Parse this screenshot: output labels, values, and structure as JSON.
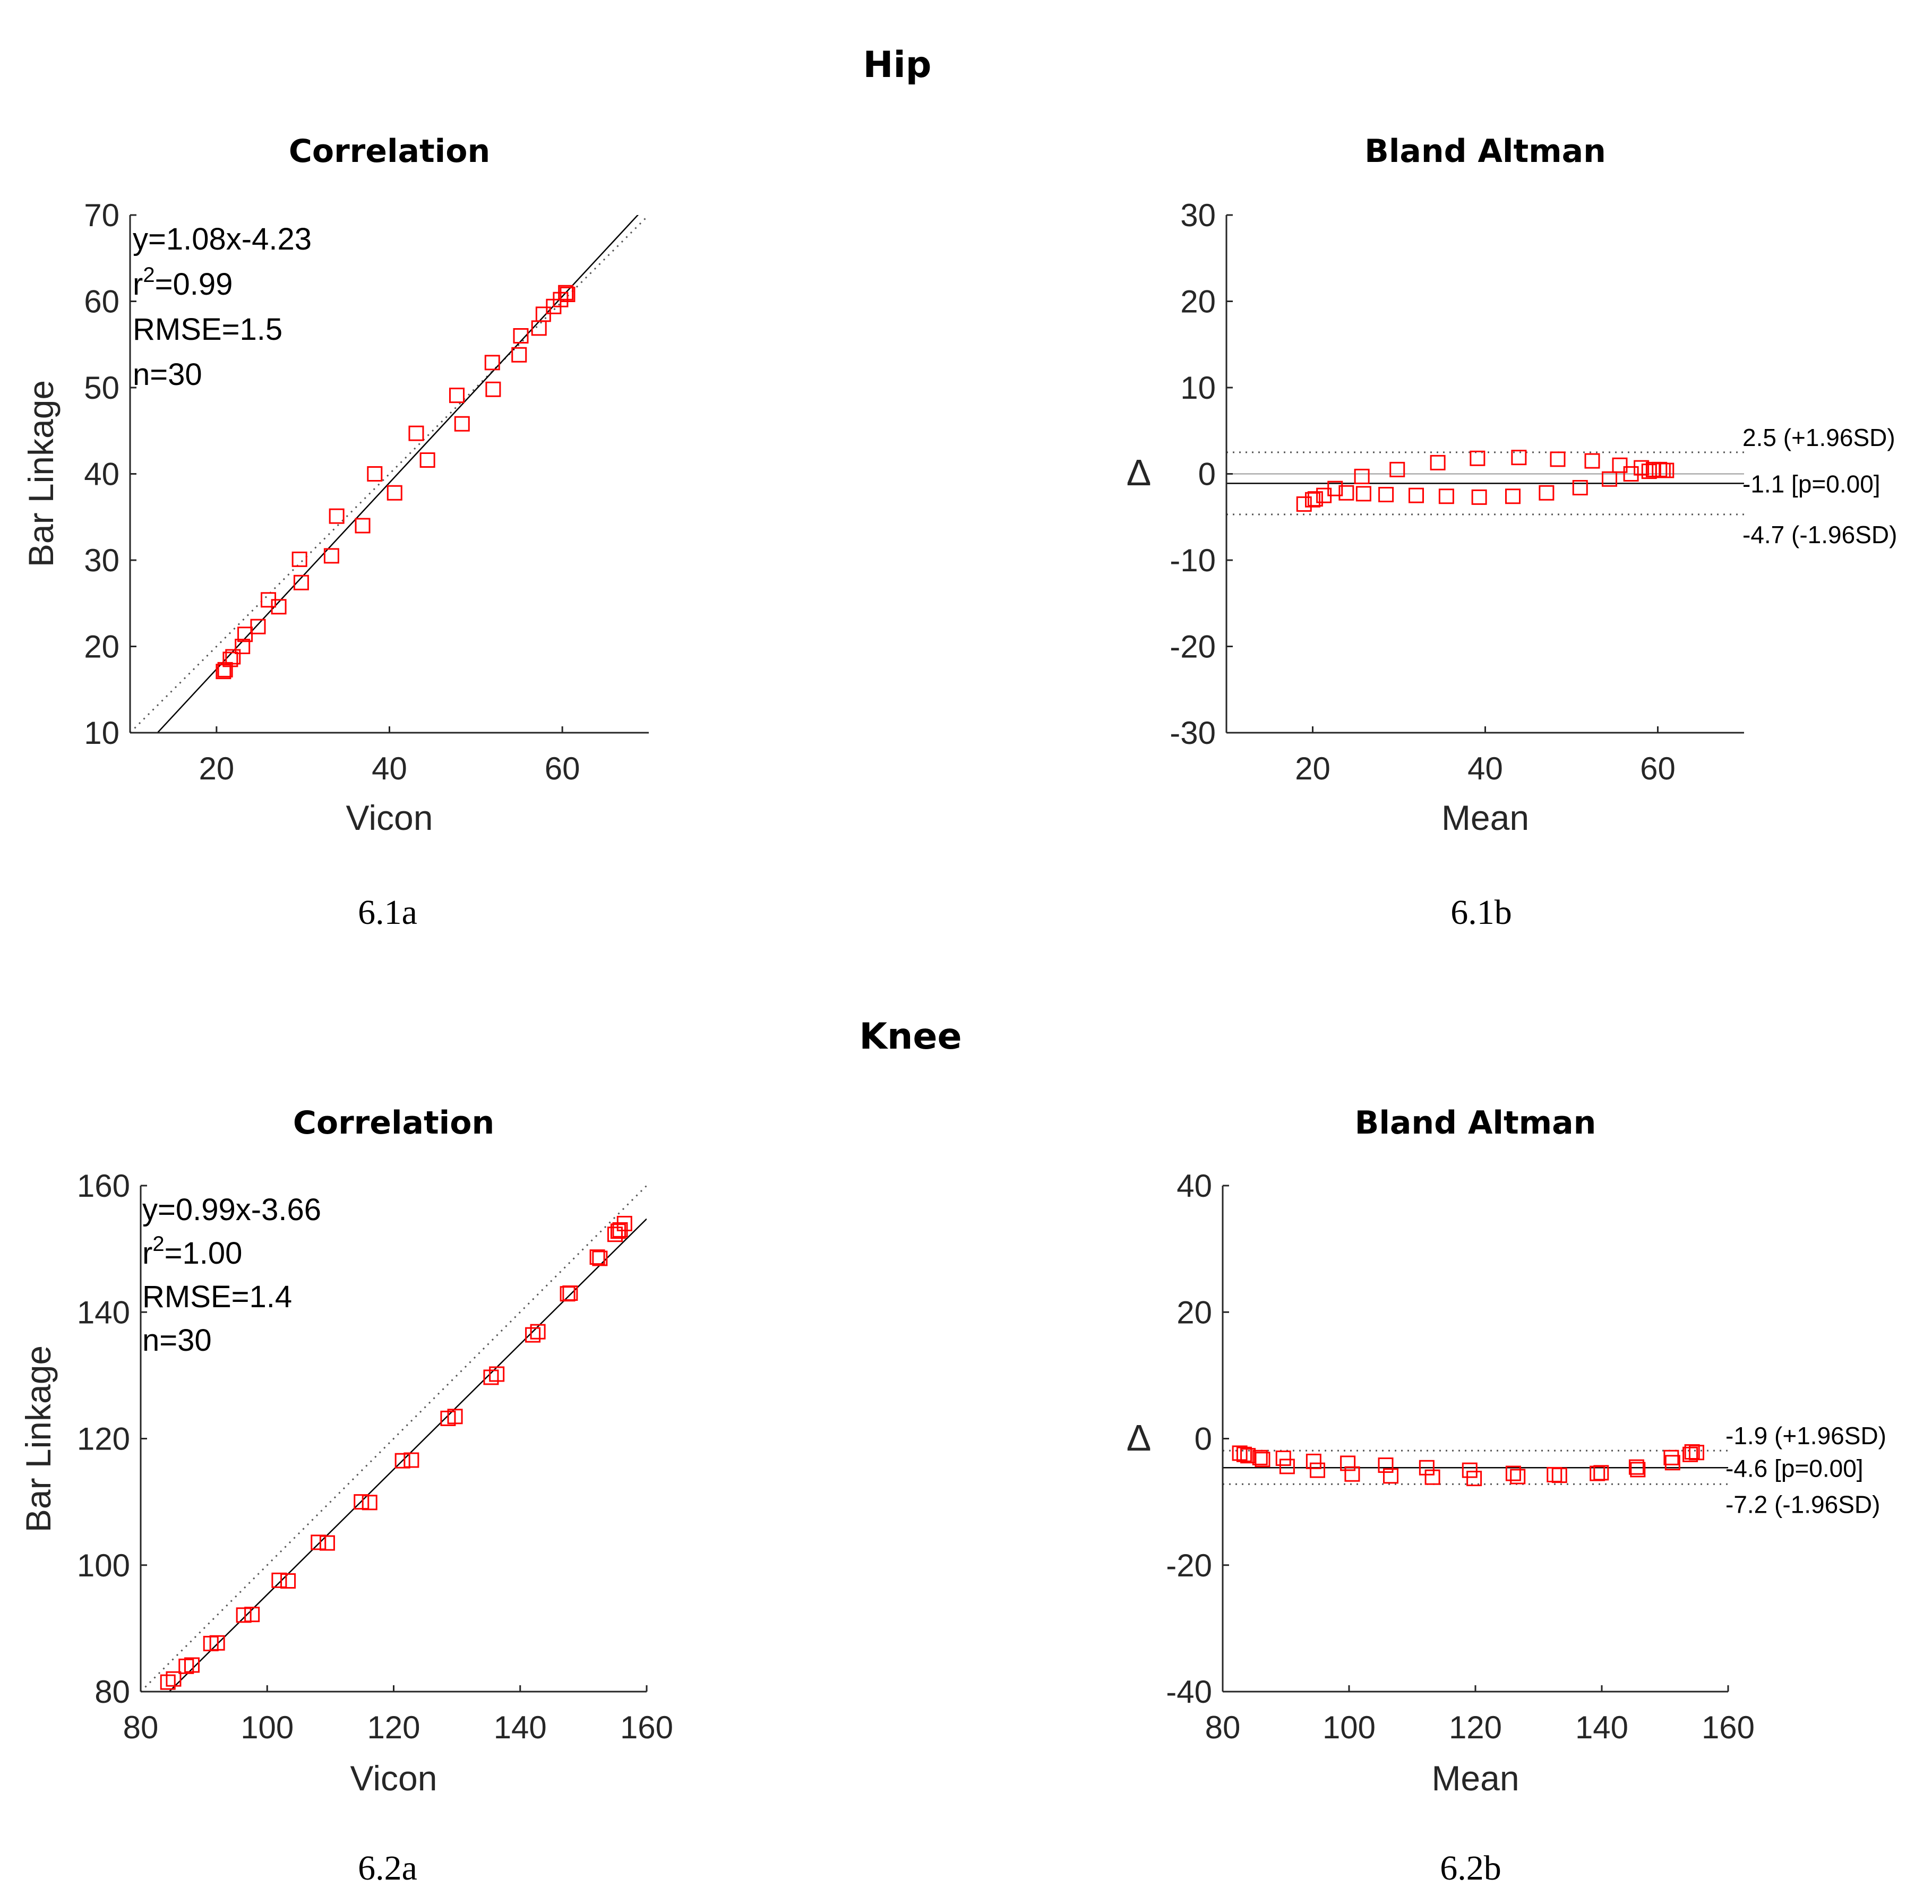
{
  "sections": {
    "hip": "Hip",
    "knee": "Knee"
  },
  "colors": {
    "marker": "#ff0000",
    "fit_line": "#000000",
    "reference": "#555555"
  },
  "chart_data": [
    {
      "id": "hip-corr",
      "type": "scatter",
      "title": "Correlation",
      "caption": "6.1a",
      "xlabel": "Vicon",
      "ylabel": "Bar Linkage",
      "xlim": [
        10,
        70
      ],
      "ylim": [
        10,
        70
      ],
      "xticks": [
        20,
        40,
        60
      ],
      "yticks": [
        10,
        20,
        30,
        40,
        50,
        60,
        70
      ],
      "fit": {
        "slope": 1.08,
        "intercept": -4.23
      },
      "identity_line": true,
      "annotations": {
        "equation": "y=1.08x-4.23",
        "r2_label": "r",
        "r2_sup": "2",
        "r2_value": "=0.99",
        "rmse": "RMSE=1.5",
        "n": "n=30"
      },
      "points": [
        [
          20.8,
          17.1
        ],
        [
          21.0,
          17.3
        ],
        [
          21.6,
          18.5
        ],
        [
          21.9,
          18.8
        ],
        [
          23.0,
          20.0
        ],
        [
          23.3,
          21.4
        ],
        [
          24.8,
          22.3
        ],
        [
          26.0,
          25.4
        ],
        [
          27.2,
          24.6
        ],
        [
          29.6,
          30.1
        ],
        [
          29.8,
          27.4
        ],
        [
          33.3,
          30.5
        ],
        [
          33.9,
          35.1
        ],
        [
          36.9,
          34.0
        ],
        [
          38.3,
          40.0
        ],
        [
          40.6,
          37.8
        ],
        [
          43.1,
          44.7
        ],
        [
          44.4,
          41.6
        ],
        [
          47.8,
          49.1
        ],
        [
          48.4,
          45.8
        ],
        [
          51.9,
          52.9
        ],
        [
          52.0,
          49.8
        ],
        [
          55.0,
          53.8
        ],
        [
          55.2,
          56.0
        ],
        [
          57.3,
          56.9
        ],
        [
          57.8,
          58.5
        ],
        [
          59.0,
          59.4
        ],
        [
          59.8,
          60.2
        ],
        [
          60.4,
          61.0
        ],
        [
          60.6,
          60.8
        ]
      ]
    },
    {
      "id": "hip-ba",
      "type": "scatter",
      "title": "Bland Altman",
      "caption": "6.1b",
      "xlabel": "Mean",
      "ylabel": "Δ",
      "xlim": [
        10,
        70
      ],
      "ylim": [
        -30,
        30
      ],
      "xticks": [
        20,
        40,
        60
      ],
      "yticks": [
        -30,
        -20,
        -10,
        0,
        10,
        20,
        30
      ],
      "zero_line": true,
      "mean_diff": -1.1,
      "upper_loa": 2.5,
      "lower_loa": -4.7,
      "labels": {
        "upper": "2.5 (+1.96SD)",
        "mean": "-1.1 [p=0.00]",
        "lower": "-4.7 (-1.96SD)"
      },
      "points": [
        [
          19.0,
          -3.5
        ],
        [
          20.0,
          -3.0
        ],
        [
          20.3,
          -2.9
        ],
        [
          21.3,
          -2.5
        ],
        [
          22.6,
          -1.7
        ],
        [
          23.9,
          -2.2
        ],
        [
          25.7,
          -0.3
        ],
        [
          25.9,
          -2.3
        ],
        [
          28.5,
          -2.4
        ],
        [
          29.8,
          0.5
        ],
        [
          32.0,
          -2.5
        ],
        [
          34.5,
          1.3
        ],
        [
          35.5,
          -2.6
        ],
        [
          39.1,
          1.8
        ],
        [
          39.3,
          -2.7
        ],
        [
          43.2,
          -2.6
        ],
        [
          43.9,
          1.9
        ],
        [
          47.1,
          -2.2
        ],
        [
          48.4,
          1.7
        ],
        [
          51.0,
          -1.6
        ],
        [
          52.4,
          1.5
        ],
        [
          54.4,
          -0.6
        ],
        [
          55.6,
          1.0
        ],
        [
          56.9,
          0.0
        ],
        [
          58.1,
          0.7
        ],
        [
          59.0,
          0.3
        ],
        [
          59.5,
          0.5
        ],
        [
          60.2,
          0.5
        ],
        [
          60.6,
          0.4
        ],
        [
          61.0,
          0.4
        ]
      ]
    },
    {
      "id": "knee-corr",
      "type": "scatter",
      "title": "Correlation",
      "caption": "6.2a",
      "xlabel": "Vicon",
      "ylabel": "Bar Linkage",
      "xlim": [
        80,
        160
      ],
      "ylim": [
        80,
        160
      ],
      "xticks": [
        80,
        100,
        120,
        140,
        160
      ],
      "yticks": [
        80,
        100,
        120,
        140,
        160
      ],
      "fit": {
        "slope": 0.99,
        "intercept": -3.66
      },
      "identity_line": true,
      "annotations": {
        "equation": "y=0.99x-3.66",
        "r2_label": "r",
        "r2_sup": "2",
        "r2_value": "=1.00",
        "rmse": "RMSE=1.4",
        "n": "n=30"
      },
      "points": [
        [
          84.3,
          81.5
        ],
        [
          85.2,
          82.0
        ],
        [
          87.2,
          84.0
        ],
        [
          88.1,
          84.2
        ],
        [
          91.1,
          87.6
        ],
        [
          92.1,
          87.7
        ],
        [
          96.3,
          92.1
        ],
        [
          97.6,
          92.2
        ],
        [
          101.9,
          97.6
        ],
        [
          103.3,
          97.5
        ],
        [
          108.1,
          103.6
        ],
        [
          109.5,
          103.5
        ],
        [
          114.9,
          110.0
        ],
        [
          116.2,
          109.9
        ],
        [
          121.4,
          116.5
        ],
        [
          122.8,
          116.6
        ],
        [
          128.6,
          123.2
        ],
        [
          129.7,
          123.5
        ],
        [
          135.4,
          129.7
        ],
        [
          136.3,
          130.2
        ],
        [
          142.0,
          136.4
        ],
        [
          142.8,
          136.9
        ],
        [
          147.5,
          142.9
        ],
        [
          147.9,
          143.0
        ],
        [
          152.2,
          148.7
        ],
        [
          152.6,
          148.5
        ],
        [
          155.0,
          152.3
        ],
        [
          155.5,
          152.8
        ],
        [
          155.8,
          153.0
        ],
        [
          156.5,
          154.0
        ]
      ]
    },
    {
      "id": "knee-ba",
      "type": "scatter",
      "title": "Bland Altman",
      "caption": "6.2b",
      "xlabel": "Mean",
      "ylabel": "Δ",
      "xlim": [
        80,
        160
      ],
      "ylim": [
        -40,
        40
      ],
      "xticks": [
        80,
        100,
        120,
        140,
        160
      ],
      "yticks": [
        -40,
        -20,
        0,
        20,
        40
      ],
      "zero_line": false,
      "mean_diff": -4.6,
      "upper_loa": -1.9,
      "lower_loa": -7.2,
      "labels": {
        "upper": "-1.9 (+1.96SD)",
        "mean": "-4.6 [p=0.00]",
        "lower": "-7.2 (-1.96SD)"
      },
      "points": [
        [
          82.7,
          -2.3
        ],
        [
          83.4,
          -2.5
        ],
        [
          84.0,
          -2.7
        ],
        [
          85.9,
          -3.0
        ],
        [
          86.3,
          -3.3
        ],
        [
          89.6,
          -3.1
        ],
        [
          90.2,
          -4.4
        ],
        [
          94.4,
          -3.6
        ],
        [
          95.0,
          -5.0
        ],
        [
          99.8,
          -3.9
        ],
        [
          100.5,
          -5.6
        ],
        [
          105.8,
          -4.2
        ],
        [
          106.6,
          -5.9
        ],
        [
          112.3,
          -4.6
        ],
        [
          113.2,
          -6.1
        ],
        [
          119.1,
          -5.0
        ],
        [
          119.8,
          -6.3
        ],
        [
          126.0,
          -5.5
        ],
        [
          126.7,
          -6.0
        ],
        [
          132.5,
          -5.7
        ],
        [
          133.3,
          -5.8
        ],
        [
          139.3,
          -5.5
        ],
        [
          139.9,
          -5.4
        ],
        [
          145.5,
          -4.5
        ],
        [
          145.7,
          -4.9
        ],
        [
          151.0,
          -3.0
        ],
        [
          151.2,
          -3.8
        ],
        [
          154.0,
          -2.5
        ],
        [
          154.3,
          -2.1
        ],
        [
          155.0,
          -2.2
        ]
      ]
    }
  ]
}
